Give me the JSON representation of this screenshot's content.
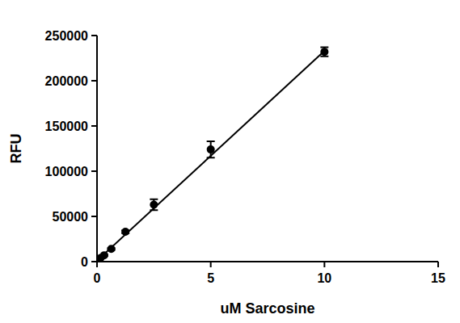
{
  "chart_data": {
    "type": "scatter",
    "x_label": "uM Sarcosine",
    "y_label": "RFU",
    "xlim": [
      0,
      15
    ],
    "xticks": [
      0,
      5,
      10,
      15
    ],
    "ylim": [
      0,
      250000
    ],
    "yticks": [
      0,
      50000,
      100000,
      150000,
      200000,
      250000
    ],
    "color": "#000000",
    "series": [
      {
        "type": "scatter",
        "marker": "circle",
        "color": "#000000",
        "x": [
          0,
          0.156,
          0.3125,
          0.625,
          1.25,
          2.5,
          5,
          10
        ],
        "values": [
          2000,
          4000,
          7000,
          14000,
          33000,
          63000,
          124000,
          232000
        ],
        "errors": [
          500,
          500,
          800,
          1000,
          1500,
          6000,
          9000,
          5000
        ]
      },
      {
        "type": "line",
        "line_style": "solid",
        "color": "#000000",
        "x": [
          0,
          10
        ],
        "values": [
          1000,
          233000
        ]
      }
    ]
  }
}
